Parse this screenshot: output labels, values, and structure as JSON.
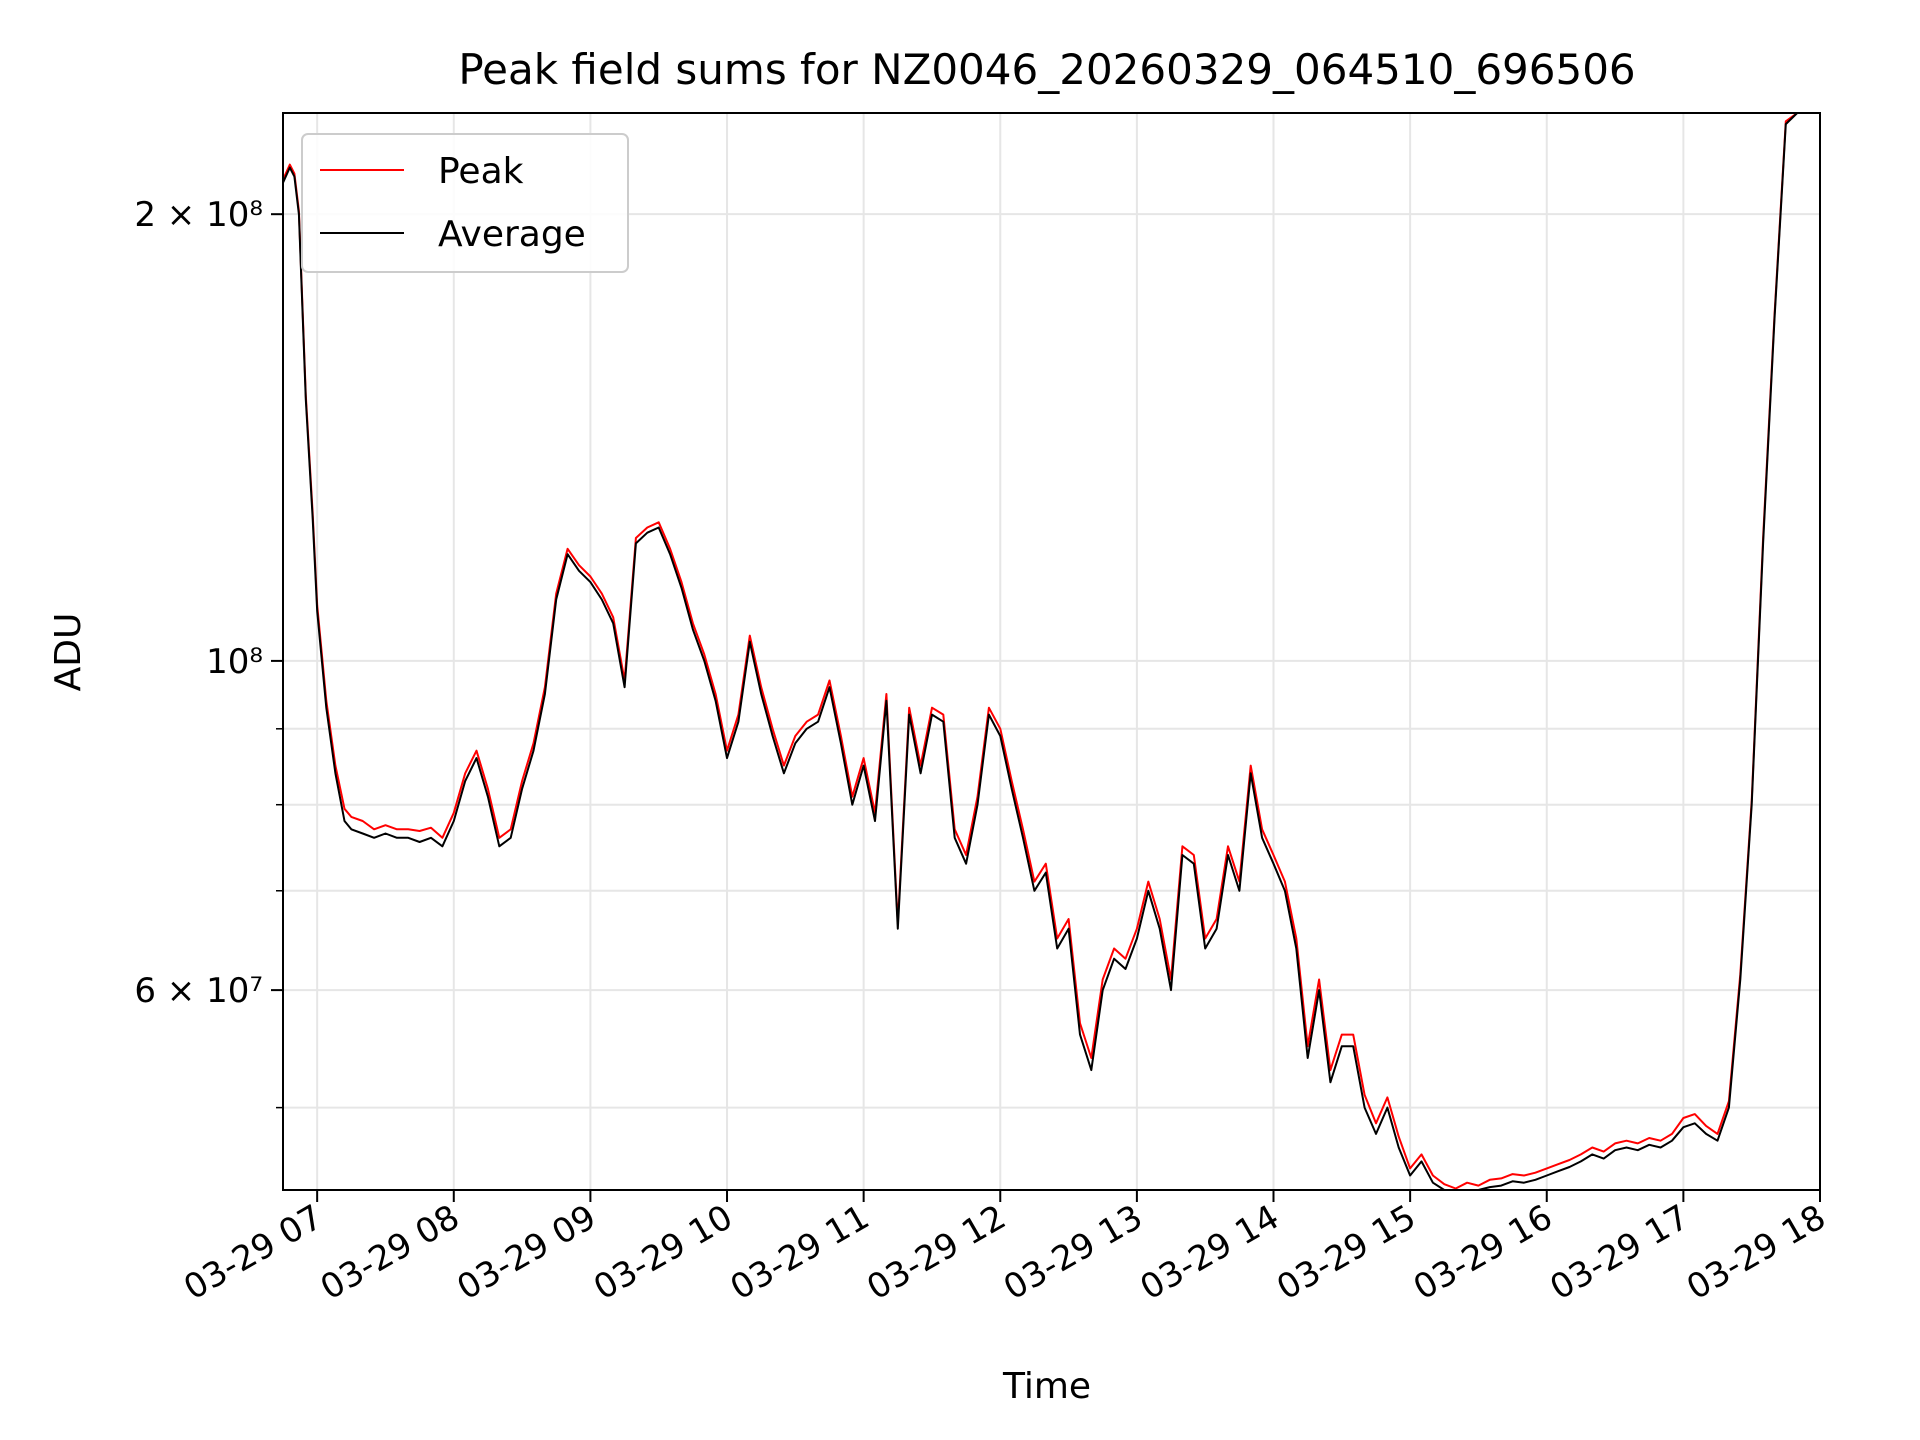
{
  "chart_data": {
    "type": "line",
    "title": "Peak field sums for NZ0046_20260329_064510_696506",
    "xlabel": "Time",
    "ylabel": "ADU",
    "yscale": "log",
    "ylim": [
      44000000,
      234000000
    ],
    "x_ticks": [
      "03-29 07",
      "03-29 08",
      "03-29 09",
      "03-29 10",
      "03-29 11",
      "03-29 12",
      "03-29 13",
      "03-29 14",
      "03-29 15",
      "03-29 16",
      "03-29 17",
      "03-29 18"
    ],
    "y_major_ticks": [
      {
        "value": 200000000,
        "label": "2 × 10⁸"
      },
      {
        "value": 100000000,
        "label": "10⁸"
      },
      {
        "value": 60000000,
        "label": "6 × 10⁷"
      }
    ],
    "y_minor_ticks": [
      50000000,
      70000000,
      80000000,
      90000000
    ],
    "grid": true,
    "legend": {
      "position": "top-left",
      "entries": [
        {
          "label": "Peak",
          "color": "#ff0000"
        },
        {
          "label": "Average",
          "color": "#000000"
        }
      ]
    },
    "x_start": "03-29 06:45",
    "x_end": "03-29 18:00",
    "x_unit": "time of day (hours)",
    "series": [
      {
        "name": "Average",
        "color": "#000000",
        "x": [
          "06:45",
          "06:48",
          "06:50",
          "06:52",
          "06:55",
          "06:58",
          "07:00",
          "07:04",
          "07:08",
          "07:12",
          "07:15",
          "07:20",
          "07:25",
          "07:30",
          "07:35",
          "07:40",
          "07:45",
          "07:50",
          "07:55",
          "08:00",
          "08:05",
          "08:10",
          "08:15",
          "08:20",
          "08:25",
          "08:30",
          "08:35",
          "08:40",
          "08:45",
          "08:50",
          "08:55",
          "09:00",
          "09:05",
          "09:10",
          "09:15",
          "09:20",
          "09:25",
          "09:30",
          "09:35",
          "09:40",
          "09:45",
          "09:50",
          "09:55",
          "10:00",
          "10:05",
          "10:10",
          "10:15",
          "10:20",
          "10:25",
          "10:30",
          "10:35",
          "10:40",
          "10:45",
          "10:50",
          "10:55",
          "11:00",
          "11:05",
          "11:10",
          "11:15",
          "11:20",
          "11:25",
          "11:30",
          "11:35",
          "11:40",
          "11:45",
          "11:50",
          "11:55",
          "12:00",
          "12:05",
          "12:10",
          "12:15",
          "12:20",
          "12:25",
          "12:30",
          "12:35",
          "12:40",
          "12:45",
          "12:50",
          "12:55",
          "13:00",
          "13:05",
          "13:10",
          "13:15",
          "13:20",
          "13:25",
          "13:30",
          "13:35",
          "13:40",
          "13:45",
          "13:50",
          "13:55",
          "14:00",
          "14:05",
          "14:10",
          "14:15",
          "14:20",
          "14:25",
          "14:30",
          "14:35",
          "14:40",
          "14:45",
          "14:50",
          "14:55",
          "15:00",
          "15:05",
          "15:10",
          "15:15",
          "15:20",
          "15:25",
          "15:30",
          "15:35",
          "15:40",
          "15:45",
          "15:50",
          "15:55",
          "16:00",
          "16:05",
          "16:10",
          "16:15",
          "16:20",
          "16:25",
          "16:30",
          "16:35",
          "16:40",
          "16:45",
          "16:50",
          "16:55",
          "17:00",
          "17:05",
          "17:10",
          "17:15",
          "17:20",
          "17:25",
          "17:30",
          "17:35",
          "17:40",
          "17:45",
          "17:50",
          "17:55",
          "18:00"
        ],
        "values": [
          210000000,
          215000000,
          212000000,
          200000000,
          150000000,
          125000000,
          108000000,
          93000000,
          84000000,
          78000000,
          77000000,
          76500000,
          76000000,
          76500000,
          76000000,
          76000000,
          75500000,
          76000000,
          75000000,
          78000000,
          83000000,
          86000000,
          81000000,
          75000000,
          76000000,
          82000000,
          87000000,
          95000000,
          110000000,
          118000000,
          115000000,
          113000000,
          110000000,
          106000000,
          96000000,
          120000000,
          122000000,
          123000000,
          118000000,
          112000000,
          105000000,
          100000000,
          94000000,
          86000000,
          91000000,
          103000000,
          95000000,
          89000000,
          84000000,
          88000000,
          90000000,
          91000000,
          96000000,
          88000000,
          80000000,
          85000000,
          78000000,
          94000000,
          66000000,
          92000000,
          84000000,
          92000000,
          91000000,
          76000000,
          73000000,
          80000000,
          92000000,
          89000000,
          82000000,
          76000000,
          70000000,
          72000000,
          64000000,
          66000000,
          56000000,
          53000000,
          60000000,
          63000000,
          62000000,
          65000000,
          70000000,
          66000000,
          60000000,
          74000000,
          73000000,
          64000000,
          66000000,
          74000000,
          70000000,
          84000000,
          76000000,
          73000000,
          70000000,
          64000000,
          54000000,
          60000000,
          52000000,
          55000000,
          55000000,
          50000000,
          48000000,
          50000000,
          47000000,
          45000000,
          46000000,
          44500000,
          44000000,
          43700000,
          44000000,
          43900000,
          44200000,
          44300000,
          44600000,
          44500000,
          44700000,
          45000000,
          45300000,
          45600000,
          46000000,
          46500000,
          46200000,
          46800000,
          47000000,
          46800000,
          47200000,
          47000000,
          47500000,
          48500000,
          48800000,
          48000000,
          47500000,
          50000000,
          61000000,
          80000000,
          120000000,
          170000000,
          230000000,
          234000000,
          234000000,
          234000000
        ]
      },
      {
        "name": "Peak",
        "color": "#ff0000",
        "x": [
          "06:45",
          "06:48",
          "06:50",
          "06:52",
          "06:55",
          "06:58",
          "07:00",
          "07:04",
          "07:08",
          "07:12",
          "07:15",
          "07:20",
          "07:25",
          "07:30",
          "07:35",
          "07:40",
          "07:45",
          "07:50",
          "07:55",
          "08:00",
          "08:05",
          "08:10",
          "08:15",
          "08:20",
          "08:25",
          "08:30",
          "08:35",
          "08:40",
          "08:45",
          "08:50",
          "08:55",
          "09:00",
          "09:05",
          "09:10",
          "09:15",
          "09:20",
          "09:25",
          "09:30",
          "09:35",
          "09:40",
          "09:45",
          "09:50",
          "09:55",
          "10:00",
          "10:05",
          "10:10",
          "10:15",
          "10:20",
          "10:25",
          "10:30",
          "10:35",
          "10:40",
          "10:45",
          "10:50",
          "10:55",
          "11:00",
          "11:05",
          "11:10",
          "11:15",
          "11:20",
          "11:25",
          "11:30",
          "11:35",
          "11:40",
          "11:45",
          "11:50",
          "11:55",
          "12:00",
          "12:05",
          "12:10",
          "12:15",
          "12:20",
          "12:25",
          "12:30",
          "12:35",
          "12:40",
          "12:45",
          "12:50",
          "12:55",
          "13:00",
          "13:05",
          "13:10",
          "13:15",
          "13:20",
          "13:25",
          "13:30",
          "13:35",
          "13:40",
          "13:45",
          "13:50",
          "13:55",
          "14:00",
          "14:05",
          "14:10",
          "14:15",
          "14:20",
          "14:25",
          "14:30",
          "14:35",
          "14:40",
          "14:45",
          "14:50",
          "14:55",
          "15:00",
          "15:05",
          "15:10",
          "15:15",
          "15:20",
          "15:25",
          "15:30",
          "15:35",
          "15:40",
          "15:45",
          "15:50",
          "15:55",
          "16:00",
          "16:05",
          "16:10",
          "16:15",
          "16:20",
          "16:25",
          "16:30",
          "16:35",
          "16:40",
          "16:45",
          "16:50",
          "16:55",
          "17:00",
          "17:05",
          "17:10",
          "17:15",
          "17:20",
          "17:25",
          "17:30",
          "17:35",
          "17:40",
          "17:45",
          "17:50",
          "17:55",
          "18:00"
        ],
        "values": [
          211000000,
          216000000,
          213000000,
          201000000,
          151000000,
          126000000,
          109000000,
          94000000,
          85000000,
          79500000,
          78500000,
          78000000,
          77000000,
          77500000,
          77000000,
          77000000,
          76800000,
          77200000,
          76000000,
          79000000,
          84000000,
          87000000,
          82000000,
          76000000,
          77000000,
          83000000,
          88000000,
          96000000,
          111000000,
          119000000,
          116000000,
          114000000,
          111000000,
          107000000,
          97000000,
          121000000,
          123000000,
          124000000,
          119000000,
          113000000,
          106000000,
          101000000,
          95000000,
          87000000,
          92000000,
          104000000,
          96000000,
          90000000,
          85000000,
          89000000,
          91000000,
          92000000,
          97000000,
          89000000,
          81000000,
          86000000,
          79000000,
          95000000,
          66500000,
          93000000,
          85000000,
          93000000,
          92000000,
          77000000,
          74000000,
          81000000,
          93000000,
          90000000,
          83000000,
          77000000,
          71000000,
          73000000,
          65000000,
          67000000,
          57000000,
          54000000,
          61000000,
          64000000,
          63000000,
          66000000,
          71000000,
          67000000,
          61000000,
          75000000,
          74000000,
          65000000,
          67000000,
          75000000,
          71000000,
          85000000,
          77000000,
          74000000,
          71000000,
          65000000,
          55000000,
          61000000,
          53000000,
          56000000,
          56000000,
          51000000,
          48800000,
          50800000,
          47800000,
          45500000,
          46500000,
          45000000,
          44400000,
          44100000,
          44500000,
          44300000,
          44700000,
          44800000,
          45100000,
          45000000,
          45200000,
          45500000,
          45800000,
          46100000,
          46500000,
          47000000,
          46700000,
          47300000,
          47500000,
          47300000,
          47700000,
          47500000,
          48000000,
          49200000,
          49500000,
          48600000,
          48000000,
          50500000,
          61500000,
          80500000,
          121000000,
          171000000,
          231000000,
          234000000,
          234000000,
          234000000
        ]
      }
    ]
  }
}
